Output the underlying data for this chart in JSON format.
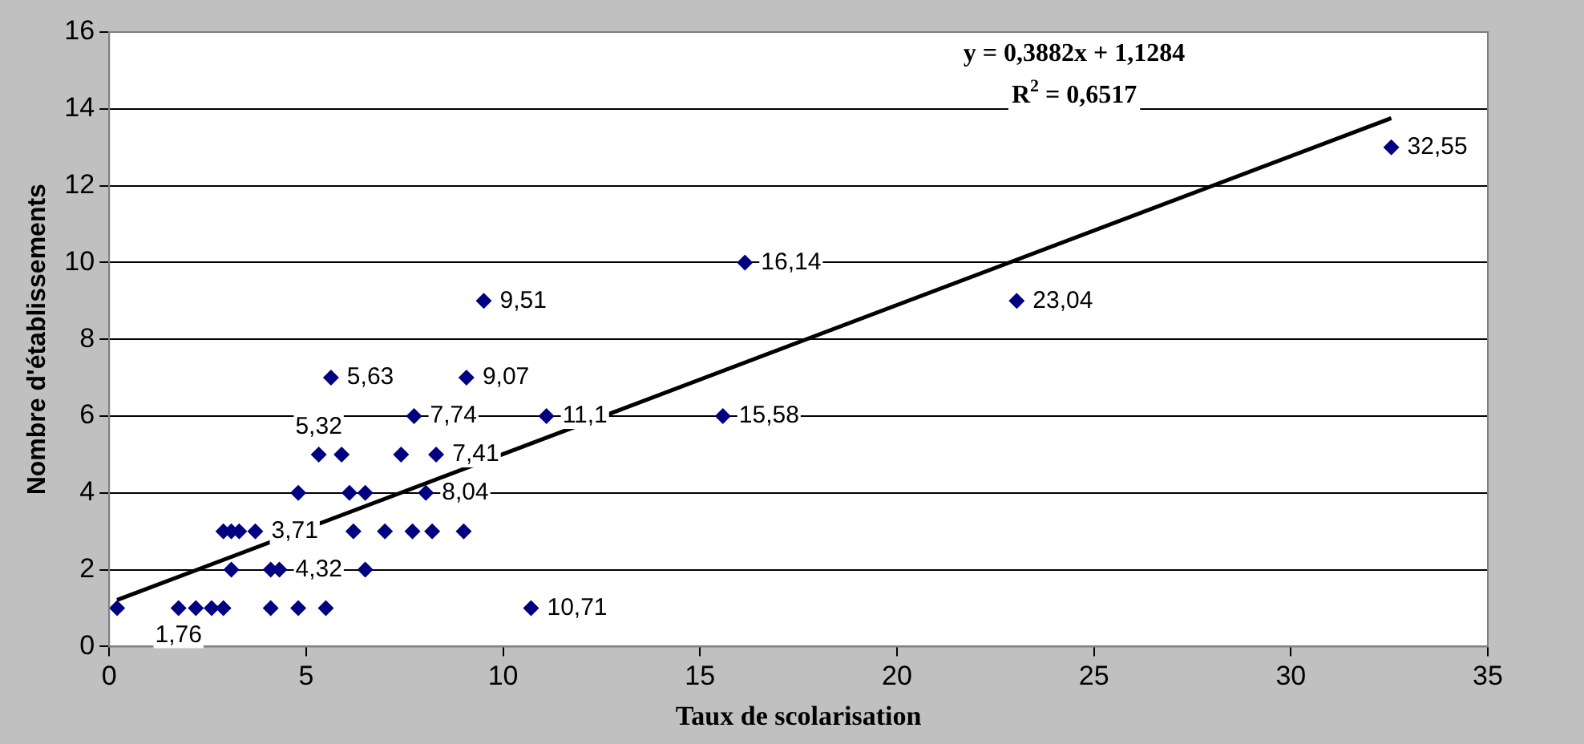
{
  "chart_data": {
    "type": "scatter",
    "xlabel": "Taux de scolarisation",
    "ylabel": "Nombre d'établissements",
    "xlim": [
      0,
      35
    ],
    "xticks": [
      0,
      5,
      10,
      15,
      20,
      25,
      30,
      35
    ],
    "ylim": [
      0,
      16
    ],
    "yticks": [
      0,
      2,
      4,
      6,
      8,
      10,
      12,
      14,
      16
    ],
    "grid": "y",
    "legend": false,
    "marker": "diamond",
    "series": [
      {
        "type": "scatter",
        "color": "#000080",
        "x": [
          0.2,
          1.76,
          2.2,
          2.6,
          2.9,
          4.1,
          4.8,
          5.5,
          10.71,
          3.1,
          4.1,
          4.32,
          6.5,
          2.9,
          3.1,
          3.3,
          3.71,
          6.2,
          7.0,
          7.7,
          8.2,
          9.0,
          4.8,
          6.1,
          6.5,
          8.04,
          5.32,
          5.9,
          7.41,
          8.3,
          7.74,
          11.1,
          15.58,
          5.63,
          9.07,
          9.51,
          23.04,
          16.14,
          32.55
        ],
        "values": [
          1,
          1,
          1,
          1,
          1,
          1,
          1,
          1,
          1,
          2,
          2,
          2,
          2,
          3,
          3,
          3,
          3,
          3,
          3,
          3,
          3,
          3,
          4,
          4,
          4,
          4,
          5,
          5,
          5,
          5,
          6,
          6,
          6,
          7,
          7,
          9,
          9,
          10,
          13
        ]
      },
      {
        "type": "line",
        "color": "#000000",
        "marker": "none",
        "x": [
          0.2,
          32.55
        ],
        "values": [
          1.21,
          13.76
        ]
      }
    ],
    "annotations": [
      "y = 0,3882x + 1,1284",
      "R$^{2}$ = 0,6517",
      {
        "text": "32,55",
        "x": 32.55,
        "y": 13
      },
      {
        "text": "16,14",
        "x": 16.14,
        "y": 10
      },
      {
        "text": "9,51",
        "x": 9.51,
        "y": 9
      },
      {
        "text": "23,04",
        "x": 23.04,
        "y": 9
      },
      {
        "text": "5,63",
        "x": 5.63,
        "y": 7
      },
      {
        "text": "9,07",
        "x": 9.07,
        "y": 7
      },
      {
        "text": "7,74",
        "x": 7.74,
        "y": 6
      },
      {
        "text": "11,1",
        "x": 11.1,
        "y": 6
      },
      {
        "text": "15,58",
        "x": 15.58,
        "y": 6
      },
      {
        "text": "5,32",
        "x": 5.32,
        "y": 5
      },
      {
        "text": "7,41",
        "x": 7.41,
        "y": 5
      },
      {
        "text": "8,04",
        "x": 8.04,
        "y": 4
      },
      {
        "text": "3,71",
        "x": 3.71,
        "y": 3
      },
      {
        "text": "4,32",
        "x": 4.32,
        "y": 2
      },
      {
        "text": "10,71",
        "x": 10.71,
        "y": 1
      },
      {
        "text": "1,76",
        "x": 1.76,
        "y": 1
      }
    ]
  }
}
